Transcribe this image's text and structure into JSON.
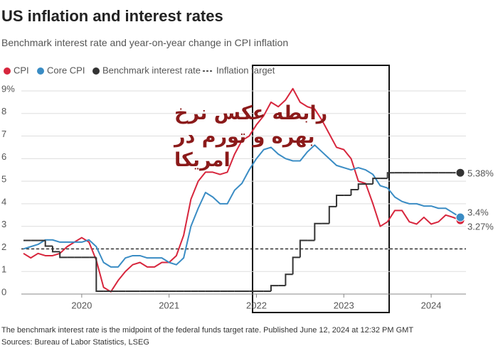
{
  "chart_data": {
    "type": "line",
    "title": "US inflation and interest rates",
    "subtitle": "Benchmark interest rate and year-on-year change in CPI inflation",
    "note": "The benchmark interest rate is the midpoint of the federal funds target rate. Published June 12, 2024 at 12:32 PM GMT",
    "source": "Sources: Bureau of Labor Statistics, LSEG",
    "annotation": [
      "رابطه عکس نرخ",
      "بهره و تورم در",
      "امریکا"
    ],
    "categories": [
      null,
      null,
      null,
      null,
      null,
      null,
      null,
      null,
      "2020",
      null,
      null,
      null,
      null,
      null,
      null,
      null,
      null,
      null,
      null,
      null,
      "2021",
      null,
      null,
      null,
      null,
      null,
      null,
      null,
      null,
      null,
      null,
      null,
      "2022",
      null,
      null,
      null,
      null,
      null,
      null,
      null,
      null,
      null,
      null,
      null,
      "2023",
      null,
      null,
      null,
      null,
      null,
      null,
      null,
      null,
      null,
      null,
      null,
      "2024",
      null,
      null,
      null,
      null
    ],
    "ylim": [
      0,
      9
    ],
    "yticks": [
      0,
      1,
      2,
      3,
      4,
      5,
      6,
      7,
      8,
      {
        "value": 9,
        "label": "9%"
      }
    ],
    "grid": true,
    "series": [
      {
        "name": "CPI",
        "color": "#d7263d",
        "style": "line",
        "values": [
          1.8,
          1.6,
          1.8,
          1.7,
          1.7,
          1.8,
          2.1,
          2.3,
          2.5,
          2.3,
          1.5,
          0.3,
          0.1,
          0.6,
          1.0,
          1.3,
          1.4,
          1.2,
          1.2,
          1.4,
          1.4,
          1.7,
          2.6,
          4.2,
          5.0,
          5.4,
          5.4,
          5.3,
          5.4,
          6.2,
          6.8,
          7.0,
          7.5,
          7.9,
          8.5,
          8.3,
          8.6,
          9.1,
          8.5,
          8.3,
          8.2,
          7.7,
          7.1,
          6.5,
          6.4,
          6.0,
          5.0,
          4.9,
          4.0,
          3.0,
          3.2,
          3.7,
          3.7,
          3.2,
          3.1,
          3.4,
          3.1,
          3.2,
          3.5,
          3.4,
          3.27
        ],
        "value_labels": [
          null,
          null,
          null,
          null,
          null,
          null,
          null,
          null,
          null,
          null,
          null,
          null,
          null,
          null,
          null,
          null,
          null,
          null,
          null,
          null,
          null,
          null,
          null,
          null,
          null,
          null,
          null,
          null,
          null,
          null,
          null,
          null,
          null,
          null,
          null,
          null,
          null,
          null,
          null,
          null,
          null,
          null,
          null,
          null,
          null,
          null,
          null,
          null,
          null,
          null,
          null,
          null,
          null,
          null,
          null,
          null,
          null,
          null,
          null,
          null,
          "3.27%"
        ]
      },
      {
        "name": "Core CPI",
        "color": "#3a8cc4",
        "style": "line",
        "values": [
          2.0,
          2.1,
          2.2,
          2.4,
          2.4,
          2.3,
          2.3,
          2.3,
          2.3,
          2.4,
          2.1,
          1.4,
          1.2,
          1.2,
          1.6,
          1.7,
          1.7,
          1.6,
          1.6,
          1.6,
          1.4,
          1.3,
          1.6,
          3.0,
          3.8,
          4.5,
          4.3,
          4.0,
          4.0,
          4.6,
          4.9,
          5.5,
          6.0,
          6.4,
          6.5,
          6.2,
          6.0,
          5.9,
          5.9,
          6.3,
          6.6,
          6.3,
          6.0,
          5.7,
          5.6,
          5.5,
          5.6,
          5.5,
          5.3,
          4.8,
          4.7,
          4.3,
          4.1,
          4.0,
          4.0,
          3.9,
          3.9,
          3.8,
          3.8,
          3.6,
          3.4
        ],
        "value_labels": [
          null,
          null,
          null,
          null,
          null,
          null,
          null,
          null,
          null,
          null,
          null,
          null,
          null,
          null,
          null,
          null,
          null,
          null,
          null,
          null,
          null,
          null,
          null,
          null,
          null,
          null,
          null,
          null,
          null,
          null,
          null,
          null,
          null,
          null,
          null,
          null,
          null,
          null,
          null,
          null,
          null,
          null,
          null,
          null,
          null,
          null,
          null,
          null,
          null,
          null,
          null,
          null,
          null,
          null,
          null,
          null,
          null,
          null,
          null,
          null,
          "3.4%"
        ]
      },
      {
        "name": "Benchmark interest rate",
        "color": "#333333",
        "style": "step",
        "values": [
          2.375,
          2.375,
          2.375,
          2.125,
          1.875,
          1.625,
          1.625,
          1.625,
          1.625,
          1.625,
          0.125,
          0.125,
          0.125,
          0.125,
          0.125,
          0.125,
          0.125,
          0.125,
          0.125,
          0.125,
          0.125,
          0.125,
          0.125,
          0.125,
          0.125,
          0.125,
          0.125,
          0.125,
          0.125,
          0.125,
          0.125,
          0.125,
          0.125,
          0.125,
          0.375,
          0.375,
          0.875,
          1.625,
          2.375,
          2.375,
          3.125,
          3.125,
          3.875,
          4.375,
          4.375,
          4.625,
          4.875,
          4.875,
          5.125,
          5.125,
          5.375,
          5.375,
          5.375,
          5.375,
          5.375,
          5.375,
          5.375,
          5.375,
          5.375,
          5.375,
          5.375
        ],
        "value_labels": [
          null,
          null,
          null,
          null,
          null,
          null,
          null,
          null,
          null,
          null,
          null,
          null,
          null,
          null,
          null,
          null,
          null,
          null,
          null,
          null,
          null,
          null,
          null,
          null,
          null,
          null,
          null,
          null,
          null,
          null,
          null,
          null,
          null,
          null,
          null,
          null,
          null,
          null,
          null,
          null,
          null,
          null,
          null,
          null,
          null,
          null,
          null,
          null,
          null,
          null,
          null,
          null,
          null,
          null,
          null,
          null,
          null,
          null,
          null,
          null,
          "5.38%"
        ]
      }
    ],
    "target": {
      "name": "Inflation target",
      "value": 2,
      "color": "#222222"
    }
  }
}
